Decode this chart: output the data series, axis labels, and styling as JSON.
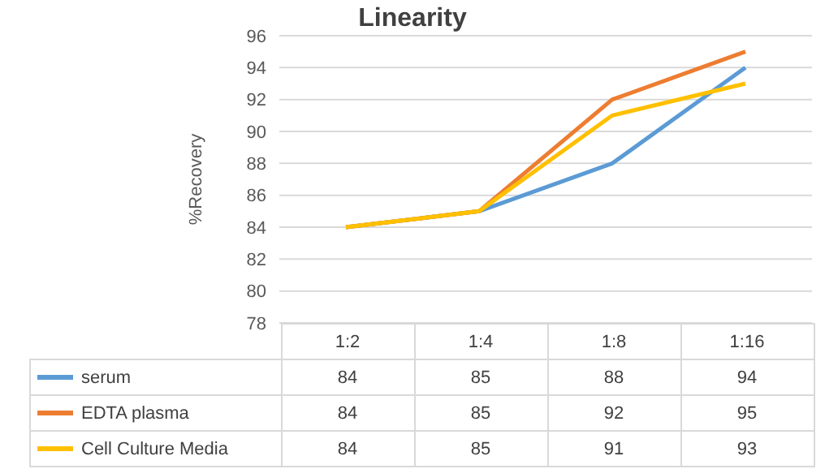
{
  "chart_data": {
    "type": "line",
    "title": "Linearity",
    "ylabel": "%Recovery",
    "categories": [
      "1:2",
      "1:4",
      "1:8",
      "1:16"
    ],
    "series": [
      {
        "name": "serum",
        "color": "#5b9bd5",
        "values": [
          84,
          85,
          88,
          94
        ]
      },
      {
        "name": "EDTA plasma",
        "color": "#ed7d31",
        "values": [
          84,
          85,
          92,
          95
        ]
      },
      {
        "name": "Cell Culture Media",
        "color": "#ffc000",
        "values": [
          84,
          85,
          91,
          93
        ]
      }
    ],
    "ylim": [
      78,
      96
    ],
    "yticks": [
      78,
      80,
      82,
      84,
      86,
      88,
      90,
      92,
      94,
      96
    ],
    "grid": "y",
    "legend": "bottom",
    "data_labels": true,
    "marker": "none",
    "line_style": "solid"
  }
}
